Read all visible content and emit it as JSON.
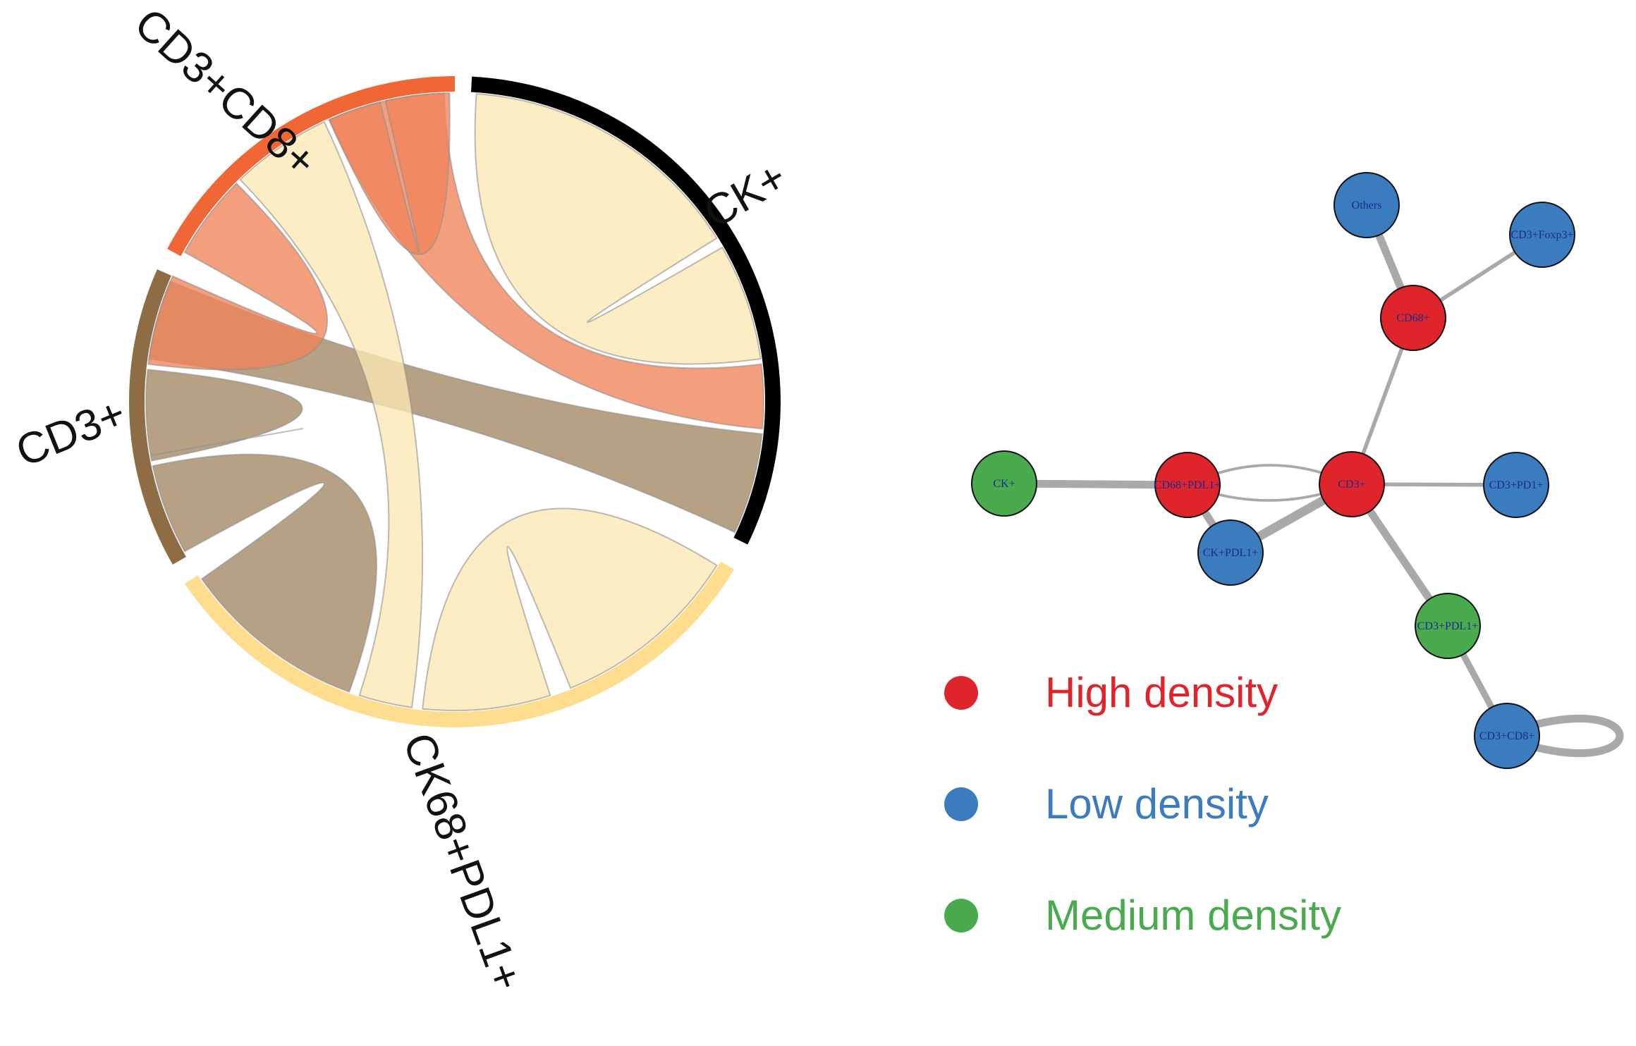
{
  "chord": {
    "sectors": [
      {
        "id": "ck",
        "label": "CK+",
        "color": "#000000"
      },
      {
        "id": "ck68",
        "label": "CK68+PDL1+",
        "color": "#fedd8e"
      },
      {
        "id": "cd3",
        "label": "CD3+",
        "color": "#8e6d45"
      },
      {
        "id": "cd3cd8",
        "label": "CD3+CD8+",
        "color": "#f06634"
      }
    ],
    "ribbons": [
      {
        "from": "ck",
        "to": "ck",
        "color": "#fde8b4"
      },
      {
        "from": "ck",
        "to": "cd3cd8",
        "color": "#f0845a"
      },
      {
        "from": "ck",
        "to": "cd3",
        "color": "#a38763"
      },
      {
        "from": "ck68",
        "to": "ck68",
        "color": "#fde8b4"
      },
      {
        "from": "ck68",
        "to": "cd3cd8",
        "color": "#fde8b4"
      },
      {
        "from": "ck68",
        "to": "cd3",
        "color": "#a38763"
      },
      {
        "from": "cd3",
        "to": "cd3",
        "color": "#a38763"
      },
      {
        "from": "cd3",
        "to": "cd3cd8",
        "color": "#f0845a"
      },
      {
        "from": "cd3cd8",
        "to": "cd3cd8",
        "color": "#f0845a"
      }
    ]
  },
  "network": {
    "nodes": [
      {
        "id": "others",
        "label": "Others",
        "density": "low"
      },
      {
        "id": "cd3foxp3",
        "label": "CD3+Foxp3+",
        "density": "low"
      },
      {
        "id": "cd68",
        "label": "CD68+",
        "density": "high"
      },
      {
        "id": "ck",
        "label": "CK+",
        "density": "medium"
      },
      {
        "id": "cd68pdl1",
        "label": "CD68+PDL1+",
        "density": "high"
      },
      {
        "id": "cd3",
        "label": "CD3+",
        "density": "high"
      },
      {
        "id": "cd3pd1",
        "label": "CD3+PD1+",
        "density": "low"
      },
      {
        "id": "ckpdl1",
        "label": "CK+PDL1+",
        "density": "low"
      },
      {
        "id": "cd3pdl1",
        "label": "CD3+PDL1+",
        "density": "medium"
      },
      {
        "id": "cd3cd8",
        "label": "CD3+CD8+",
        "density": "low"
      }
    ],
    "edges": [
      {
        "from": "others",
        "to": "cd68",
        "weight": 5
      },
      {
        "from": "cd3foxp3",
        "to": "cd68",
        "weight": 2
      },
      {
        "from": "cd68",
        "to": "cd3",
        "weight": 2
      },
      {
        "from": "ck",
        "to": "cd68pdl1",
        "weight": 5
      },
      {
        "from": "cd68pdl1",
        "to": "cd3",
        "weight": 1,
        "curve": "up"
      },
      {
        "from": "cd68pdl1",
        "to": "cd3",
        "weight": 1,
        "curve": "down"
      },
      {
        "from": "cd68pdl1",
        "to": "ckpdl1",
        "weight": 5
      },
      {
        "from": "ckpdl1",
        "to": "cd3",
        "weight": 6
      },
      {
        "from": "cd3",
        "to": "cd3pd1",
        "weight": 2
      },
      {
        "from": "cd3",
        "to": "cd3pdl1",
        "weight": 5
      },
      {
        "from": "cd3pdl1",
        "to": "cd3cd8",
        "weight": 4
      },
      {
        "from": "cd3cd8",
        "to": "cd3cd8",
        "weight": 5
      }
    ]
  },
  "legend": {
    "items": [
      {
        "density": "high",
        "label": "High density",
        "color": "#e0242b"
      },
      {
        "density": "low",
        "label": "Low density",
        "color": "#3b7cbf"
      },
      {
        "density": "medium",
        "label": "Medium density",
        "color": "#4aab4e"
      }
    ]
  }
}
